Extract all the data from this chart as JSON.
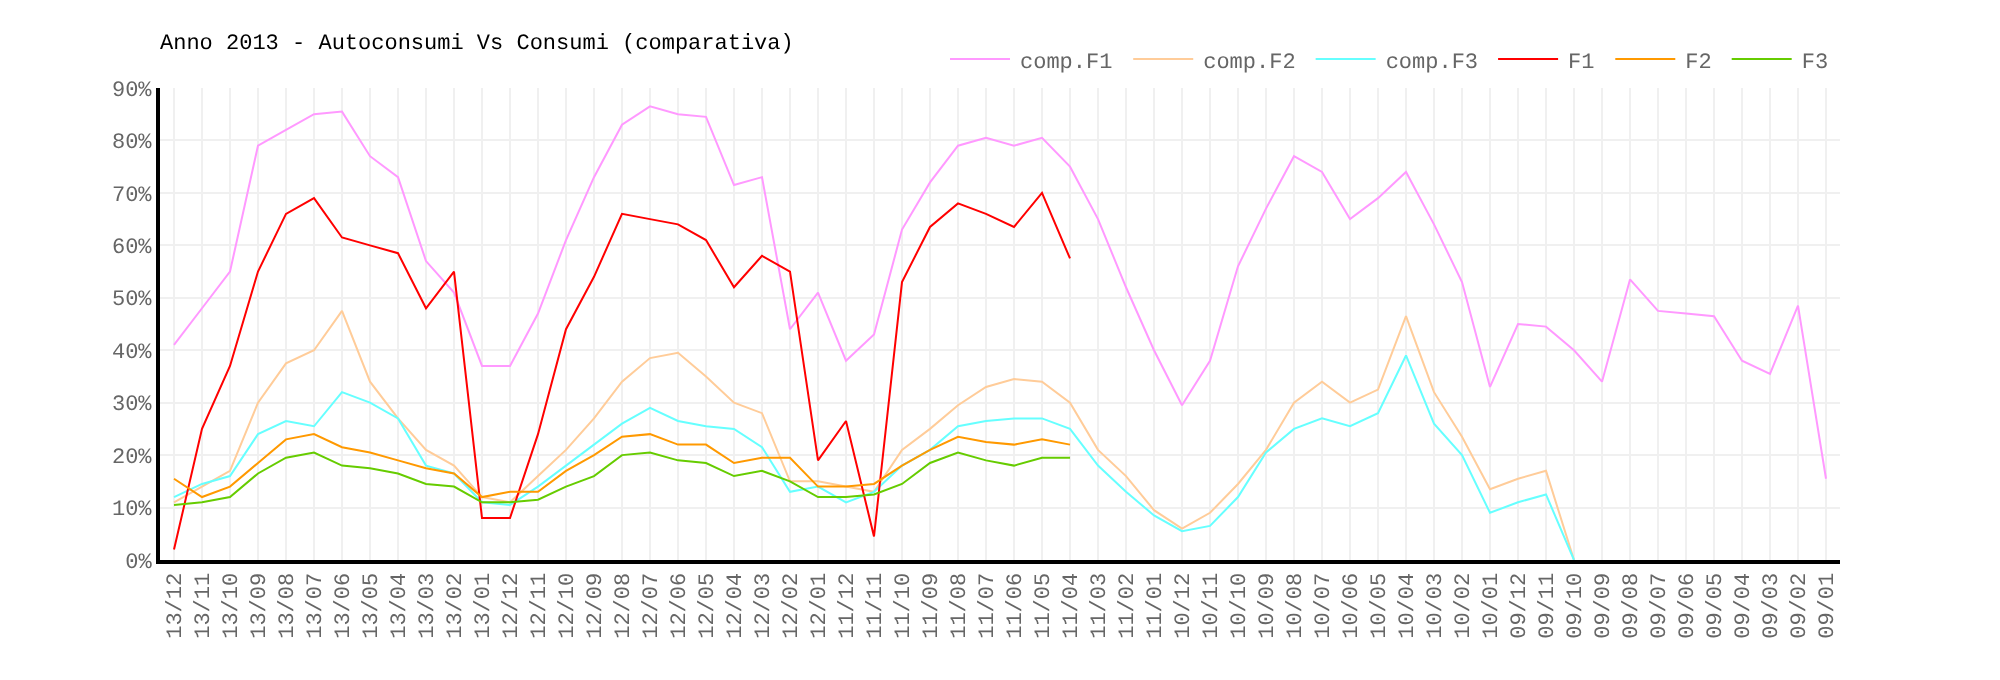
{
  "chart_data": {
    "type": "line",
    "title": "Anno 2013 - Autoconsumi Vs Consumi (comparativa)",
    "categories": [
      "13/12",
      "13/11",
      "13/10",
      "13/09",
      "13/08",
      "13/07",
      "13/06",
      "13/05",
      "13/04",
      "13/03",
      "13/02",
      "13/01",
      "12/12",
      "12/11",
      "12/10",
      "12/09",
      "12/08",
      "12/07",
      "12/06",
      "12/05",
      "12/04",
      "12/03",
      "12/02",
      "12/01",
      "11/12",
      "11/11",
      "11/10",
      "11/09",
      "11/08",
      "11/07",
      "11/06",
      "11/05",
      "11/04",
      "11/03",
      "11/02",
      "11/01",
      "10/12",
      "10/11",
      "10/10",
      "10/09",
      "10/08",
      "10/07",
      "10/06",
      "10/05",
      "10/04",
      "10/03",
      "10/02",
      "10/01",
      "09/12",
      "09/11",
      "09/10",
      "09/09",
      "09/08",
      "09/07",
      "09/06",
      "09/05",
      "09/04",
      "09/03",
      "09/02",
      "09/01"
    ],
    "series": [
      {
        "name": "comp.F1",
        "color": "#ff99ff",
        "values": [
          41,
          48,
          55,
          79,
          82,
          85,
          85.5,
          77,
          73,
          57,
          51,
          37,
          37,
          47,
          61,
          73,
          83,
          86.5,
          85,
          84.5,
          71.5,
          73,
          44,
          51,
          38,
          43,
          63,
          72,
          79,
          80.5,
          79,
          80.5,
          75,
          65,
          52,
          40,
          29.5,
          38,
          56,
          67,
          77,
          74,
          65,
          69,
          74,
          64,
          53,
          33,
          45,
          44.5,
          40,
          34,
          53.5,
          47.5,
          47,
          46.5,
          38,
          35.5,
          48.5,
          15.5
        ]
      },
      {
        "name": "comp.F2",
        "color": "#ffcc99",
        "values": [
          11,
          14,
          17,
          30,
          37.5,
          40,
          47.5,
          34,
          27,
          21,
          18,
          12,
          11,
          16,
          21,
          27,
          34,
          38.5,
          39.5,
          35,
          30,
          28,
          15,
          15,
          14,
          13,
          21,
          25,
          29.5,
          33,
          34.5,
          34,
          30,
          21,
          16,
          9.5,
          6,
          9,
          14.5,
          21,
          30,
          34,
          30,
          32.5,
          46.5,
          32,
          23.5,
          13.5,
          15.5,
          17,
          0,
          null,
          null,
          null,
          null,
          null,
          null,
          null,
          null,
          null
        ]
      },
      {
        "name": "comp.F3",
        "color": "#66ffff",
        "values": [
          12,
          14.5,
          16,
          24,
          26.5,
          25.5,
          32,
          30,
          27,
          18,
          16.5,
          11,
          10.5,
          14,
          18,
          22,
          26,
          29,
          26.5,
          25.5,
          25,
          21.5,
          13,
          14,
          11,
          13,
          18,
          21,
          25.5,
          26.5,
          27,
          27,
          25,
          18,
          13,
          8.5,
          5.5,
          6.5,
          12,
          20.5,
          25,
          27,
          25.5,
          28,
          39,
          26,
          20,
          9,
          11,
          12.5,
          0,
          null,
          null,
          null,
          null,
          null,
          null,
          null,
          null,
          null
        ]
      },
      {
        "name": "F1",
        "color": "#ff0000",
        "values": [
          2,
          25,
          37,
          55,
          66,
          69,
          61.5,
          60,
          58.5,
          48,
          55,
          8,
          8,
          24,
          44,
          54,
          66,
          65,
          64,
          61,
          52,
          58,
          55,
          19,
          26.5,
          4.5,
          53,
          63.5,
          68,
          66,
          63.5,
          70,
          57.5,
          null,
          null,
          null,
          null,
          null,
          null,
          null,
          null,
          null,
          null,
          null,
          null,
          null,
          null,
          null,
          null,
          null,
          null,
          null,
          null,
          null,
          null,
          null,
          null,
          null,
          null,
          null
        ]
      },
      {
        "name": "F2",
        "color": "#ff9900",
        "values": [
          15.5,
          12,
          14,
          18.5,
          23,
          24,
          21.5,
          20.5,
          19,
          17.5,
          16.5,
          12,
          13,
          13,
          17,
          20,
          23.5,
          24,
          22,
          22,
          18.5,
          19.5,
          19.5,
          14,
          14,
          14.5,
          18,
          21,
          23.5,
          22.5,
          22,
          23,
          22,
          null,
          null,
          null,
          null,
          null,
          null,
          null,
          null,
          null,
          null,
          null,
          null,
          null,
          null,
          null,
          null,
          null,
          null,
          null,
          null,
          null,
          null,
          null,
          null,
          null,
          null,
          null
        ]
      },
      {
        "name": "F3",
        "color": "#66cc00",
        "values": [
          10.5,
          11,
          12,
          16.5,
          19.5,
          20.5,
          18,
          17.5,
          16.5,
          14.5,
          14,
          11,
          11,
          11.5,
          14,
          16,
          20,
          20.5,
          19,
          18.5,
          16,
          17,
          15,
          12,
          12,
          12.5,
          14.5,
          18.5,
          20.5,
          19,
          18,
          19.5,
          19.5,
          null,
          null,
          null,
          null,
          null,
          null,
          null,
          null,
          null,
          null,
          null,
          null,
          null,
          null,
          null,
          null,
          null,
          null,
          null,
          null,
          null,
          null,
          null,
          null,
          null,
          null,
          null
        ]
      }
    ],
    "ylim": [
      0,
      90
    ],
    "yticks": [
      {
        "value": 0,
        "label": "0%"
      },
      {
        "value": 10,
        "label": "10%"
      },
      {
        "value": 20,
        "label": "20%"
      },
      {
        "value": 30,
        "label": "30%"
      },
      {
        "value": 40,
        "label": "40%"
      },
      {
        "value": 50,
        "label": "50%"
      },
      {
        "value": 60,
        "label": "60%"
      },
      {
        "value": 70,
        "label": "70%"
      },
      {
        "value": 80,
        "label": "80%"
      },
      {
        "value": 90,
        "label": "90%"
      }
    ],
    "grid": true,
    "legend": "top right",
    "marker": "none",
    "line_style": "solid"
  }
}
